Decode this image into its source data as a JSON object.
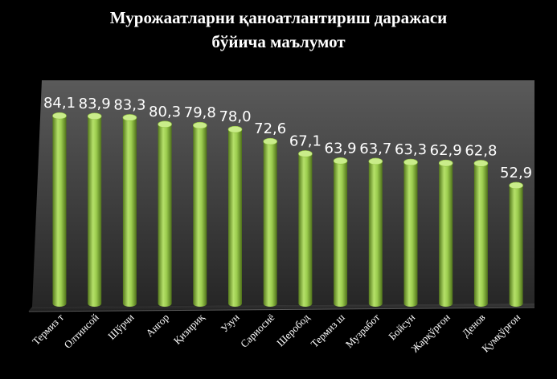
{
  "chart_data": {
    "type": "bar",
    "title_lines": [
      "Мурожаатларни қаноатлантириш даражаси",
      "бўйича маълумот"
    ],
    "categories": [
      "Термиз т",
      "Олтинсой",
      "Шўрчи",
      "Ангор",
      "Қизириқ",
      "Узун",
      "Сариосиё",
      "Шеробод",
      "Термиз ш",
      "Музработ",
      "Бойсун",
      "Жарқўрғон",
      "Денов",
      "Қумқўрғон"
    ],
    "values": [
      84.1,
      83.9,
      83.3,
      80.3,
      79.8,
      78.0,
      72.6,
      67.1,
      63.9,
      63.7,
      63.3,
      62.9,
      62.8,
      52.9
    ],
    "value_labels": [
      "84,1",
      "83,9",
      "83,3",
      "80,3",
      "79,8",
      "78,0",
      "72,6",
      "67,1",
      "63,9",
      "63,7",
      "63,3",
      "62,9",
      "62,8",
      "52,9"
    ],
    "ylim": [
      0,
      100
    ],
    "grid": false,
    "bar_color": "#8fbf3f",
    "background": "#000000",
    "wall_color": "#3a3a3a"
  }
}
